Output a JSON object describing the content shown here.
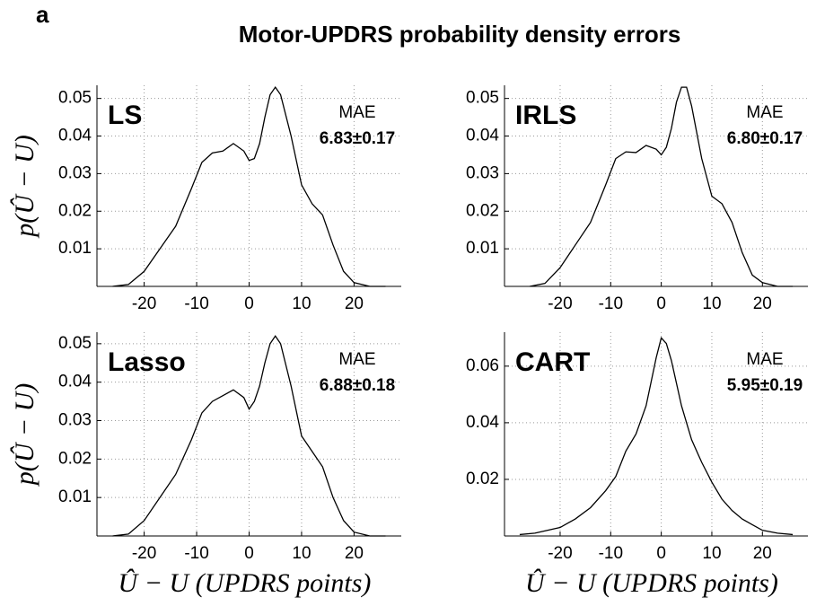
{
  "label": "a",
  "title": "Motor-UPDRS probability density errors",
  "chart_data": [
    {
      "type": "line",
      "name": "LS",
      "annotation": "MAE",
      "mae": "6.83±0.17",
      "ylabel": "p(Û − U)",
      "x": [
        -26,
        -23,
        -20,
        -17,
        -14,
        -11,
        -9,
        -7,
        -5,
        -3,
        -1,
        0,
        1,
        2,
        3,
        4,
        5,
        6,
        8,
        10,
        12,
        14,
        16,
        18,
        20,
        23,
        26
      ],
      "series": [
        {
          "color": "#000000",
          "values": [
            0,
            0.0005,
            0.004,
            0.01,
            0.016,
            0.026,
            0.033,
            0.0355,
            0.036,
            0.038,
            0.036,
            0.0335,
            0.034,
            0.038,
            0.045,
            0.051,
            0.053,
            0.051,
            0.04,
            0.027,
            0.022,
            0.019,
            0.011,
            0.004,
            0.001,
            0,
            0
          ]
        }
      ],
      "xlim": [
        -29,
        29
      ],
      "ylim": [
        0,
        0.0535
      ],
      "xticks": [
        -20,
        -10,
        0,
        10,
        20
      ],
      "yticks": [
        0.01,
        0.02,
        0.03,
        0.04,
        0.05
      ],
      "grid": true
    },
    {
      "type": "line",
      "name": "IRLS",
      "annotation": "MAE",
      "mae": "6.80±0.17",
      "x": [
        -26,
        -23,
        -20,
        -17,
        -14,
        -11,
        -9,
        -7,
        -5,
        -3,
        -1,
        0,
        1,
        2,
        3,
        4,
        5,
        6,
        8,
        10,
        12,
        14,
        16,
        18,
        20,
        23,
        26
      ],
      "series": [
        {
          "color": "#000000",
          "values": [
            0,
            0.0008,
            0.005,
            0.011,
            0.017,
            0.027,
            0.034,
            0.0358,
            0.0356,
            0.0375,
            0.0365,
            0.035,
            0.037,
            0.042,
            0.049,
            0.053,
            0.053,
            0.048,
            0.034,
            0.024,
            0.022,
            0.017,
            0.009,
            0.003,
            0.001,
            0,
            0
          ]
        }
      ],
      "xlim": [
        -31,
        29
      ],
      "ylim": [
        0,
        0.0535
      ],
      "xticks": [
        -20,
        -10,
        0,
        10,
        20
      ],
      "yticks": [
        0.01,
        0.02,
        0.03,
        0.04,
        0.05
      ],
      "grid": true
    },
    {
      "type": "line",
      "name": "Lasso",
      "annotation": "MAE",
      "mae": "6.88±0.18",
      "ylabel": "p(Û − U)",
      "xlabel": "Û − U (UPDRS points)",
      "x": [
        -26,
        -23,
        -20,
        -17,
        -14,
        -11,
        -9,
        -7,
        -5,
        -3,
        -1,
        0,
        1,
        2,
        3,
        4,
        5,
        6,
        8,
        10,
        12,
        14,
        16,
        18,
        20,
        23,
        26
      ],
      "series": [
        {
          "color": "#000000",
          "values": [
            0,
            0.0005,
            0.004,
            0.01,
            0.016,
            0.025,
            0.032,
            0.035,
            0.0365,
            0.038,
            0.036,
            0.033,
            0.035,
            0.039,
            0.045,
            0.05,
            0.052,
            0.05,
            0.039,
            0.026,
            0.022,
            0.018,
            0.01,
            0.004,
            0.001,
            0,
            0
          ]
        }
      ],
      "xlim": [
        -29,
        29
      ],
      "ylim": [
        0,
        0.053
      ],
      "xticks": [
        -20,
        -10,
        0,
        10,
        20
      ],
      "yticks": [
        0.01,
        0.02,
        0.03,
        0.04,
        0.05
      ],
      "grid": true
    },
    {
      "type": "line",
      "name": "CART",
      "annotation": "MAE",
      "mae": "5.95±0.19",
      "xlabel": "Û − U (UPDRS points)",
      "x": [
        -28,
        -25,
        -20,
        -17,
        -14,
        -11,
        -9,
        -7,
        -5,
        -3,
        -1,
        0,
        1,
        2,
        3,
        4,
        5,
        6,
        8,
        10,
        12,
        14,
        16,
        18,
        20,
        23,
        26
      ],
      "series": [
        {
          "color": "#000000",
          "values": [
            0.0005,
            0.001,
            0.003,
            0.006,
            0.01,
            0.016,
            0.021,
            0.03,
            0.036,
            0.046,
            0.063,
            0.07,
            0.068,
            0.062,
            0.054,
            0.046,
            0.04,
            0.034,
            0.026,
            0.019,
            0.013,
            0.009,
            0.006,
            0.004,
            0.002,
            0.001,
            0.0005
          ]
        }
      ],
      "xlim": [
        -31,
        29
      ],
      "ylim": [
        0,
        0.072
      ],
      "xticks": [
        -20,
        -10,
        0,
        10,
        20
      ],
      "yticks": [
        0.02,
        0.04,
        0.06
      ],
      "grid": true
    }
  ]
}
